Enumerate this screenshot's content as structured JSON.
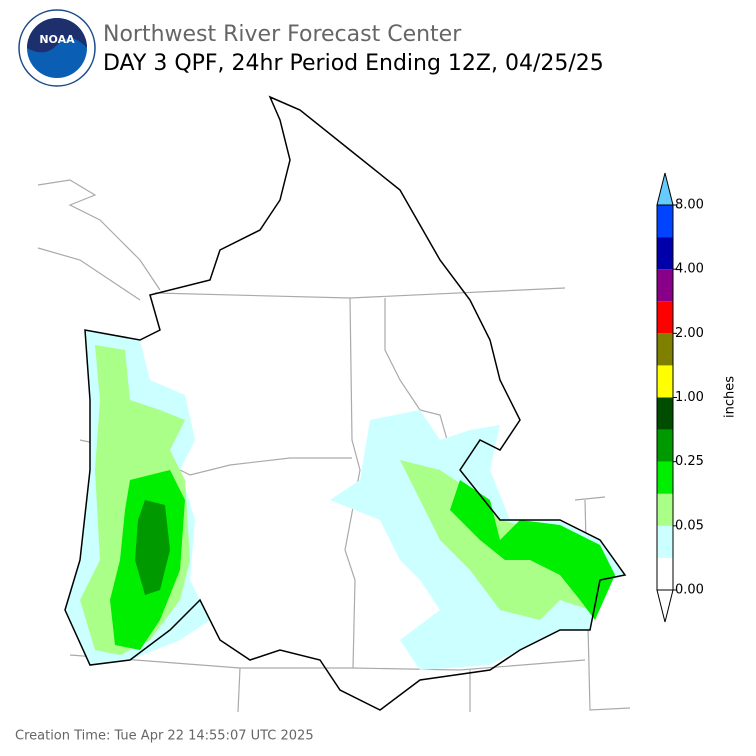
{
  "header": {
    "title": "Northwest River Forecast Center",
    "subtitle": "DAY 3 QPF, 24hr Period Ending 12Z, 04/25/25",
    "logo_text": "NOAA"
  },
  "colorbar": {
    "label": "inches",
    "colors": [
      "#ffffff",
      "#ccffff",
      "#aaff88",
      "#00ee00",
      "#009900",
      "#004d00",
      "#ffff00",
      "#808000",
      "#ff0000",
      "#880088",
      "#0000aa",
      "#0044ff"
    ],
    "over_color": "#66ccff",
    "under_color": "#ffffff",
    "ticks": [
      {
        "value": 0,
        "label": "0.00"
      },
      {
        "value": 0.05,
        "label": "0.05"
      },
      {
        "value": 0.25,
        "label": "0.25"
      },
      {
        "value": 1,
        "label": "1.00"
      },
      {
        "value": 2,
        "label": "2.00"
      },
      {
        "value": 4,
        "label": "4.00"
      },
      {
        "value": 8,
        "label": "8.00"
      }
    ]
  },
  "footer": {
    "creation_time": "Creation Time: Tue Apr 22 14:55:07 UTC 2025"
  }
}
